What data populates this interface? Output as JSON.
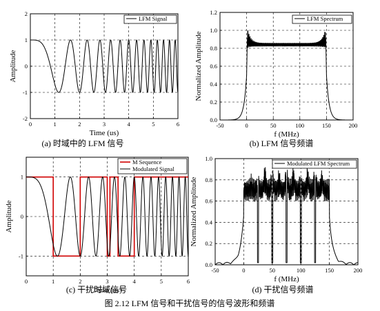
{
  "chart_data": [
    {
      "id": "a",
      "type": "line",
      "caption": "(a)  时域中的 LFM 信号",
      "xlabel": "Time (us)",
      "ylabel": "Amplitude",
      "xlim": [
        0,
        6
      ],
      "ylim": [
        -2,
        2
      ],
      "xticks": [
        0,
        1,
        2,
        3,
        4,
        5,
        6
      ],
      "yticks": [
        -2,
        -1,
        0,
        1,
        2
      ],
      "grid": true,
      "legend": "top-right",
      "series": [
        {
          "name": "LFM Signal",
          "color": "#000000",
          "function": "cos(2*pi*(0.5*f0*t - k*t^2/2))",
          "f0": 0.5,
          "k": 0.75,
          "t_start": 0,
          "t_end": 6,
          "amplitude": 1
        }
      ]
    },
    {
      "id": "b",
      "type": "line",
      "caption": "(b) LFM 信号频谱",
      "xlabel": "f (MHz)",
      "ylabel": "Normalized Amplitude",
      "xlim": [
        -50,
        200
      ],
      "ylim": [
        0,
        1.2
      ],
      "xticks": [
        -50,
        0,
        50,
        100,
        150,
        200
      ],
      "yticks": [
        0,
        0.2,
        0.4,
        0.6,
        0.8,
        1.0,
        1.2
      ],
      "grid": true,
      "legend": "top-right",
      "series": [
        {
          "name": "LFM Spectrum",
          "color": "#000000",
          "band": [
            0,
            150
          ],
          "plateau": 0.84,
          "edge_peak": 1.0,
          "ripple": 0.03
        }
      ]
    },
    {
      "id": "c",
      "type": "line",
      "caption": "(c) 干扰时域信号",
      "xlabel": "Time (us)",
      "ylabel": "Amplitude",
      "xlim": [
        0,
        6
      ],
      "ylim": [
        -1.5,
        1.5
      ],
      "xticks": [
        0,
        1,
        2,
        3,
        4,
        5,
        6
      ],
      "yticks": [
        -1,
        0,
        1
      ],
      "grid": true,
      "legend": "top-right",
      "series": [
        {
          "name": "M Sequence",
          "color": "#d00000",
          "steps": [
            [
              0,
              1
            ],
            [
              1,
              -1
            ],
            [
              2,
              1
            ],
            [
              3,
              -1
            ],
            [
              3.1,
              1
            ],
            [
              3.4,
              -1
            ],
            [
              4,
              1
            ],
            [
              6,
              1
            ]
          ]
        },
        {
          "name": "Modulated Signal",
          "color": "#000000",
          "f0": 0.5,
          "k": 0.75,
          "amplitude": 1
        }
      ]
    },
    {
      "id": "d",
      "type": "line",
      "caption": "(d)  干扰信号频谱",
      "xlabel": "f (MHz)",
      "ylabel": "Normalized Amplitude",
      "xlim": [
        -50,
        200
      ],
      "ylim": [
        0,
        1.0
      ],
      "xticks": [
        -50,
        0,
        50,
        100,
        150,
        200
      ],
      "yticks": [
        0,
        0.2,
        0.4,
        0.6,
        0.8,
        1.0
      ],
      "grid": true,
      "legend": "top-right",
      "series": [
        {
          "name": "Modulated LFM Spectrum",
          "color": "#000000",
          "band": [
            0,
            150
          ],
          "plateau": 0.7,
          "peaks": [
            [
              13,
              0.75
            ],
            [
              25,
              0.78
            ],
            [
              37,
              0.86
            ],
            [
              50,
              0.88
            ],
            [
              62,
              0.82
            ],
            [
              75,
              0.93
            ],
            [
              87,
              0.85
            ],
            [
              100,
              0.82
            ],
            [
              112,
              0.86
            ],
            [
              125,
              0.88
            ],
            [
              137,
              0.82
            ]
          ],
          "nulls": [
            25,
            50,
            75,
            100,
            125
          ]
        }
      ]
    }
  ],
  "figure_caption": "图 2.12 LFM 信号和干扰信号的信号波形和频谱"
}
